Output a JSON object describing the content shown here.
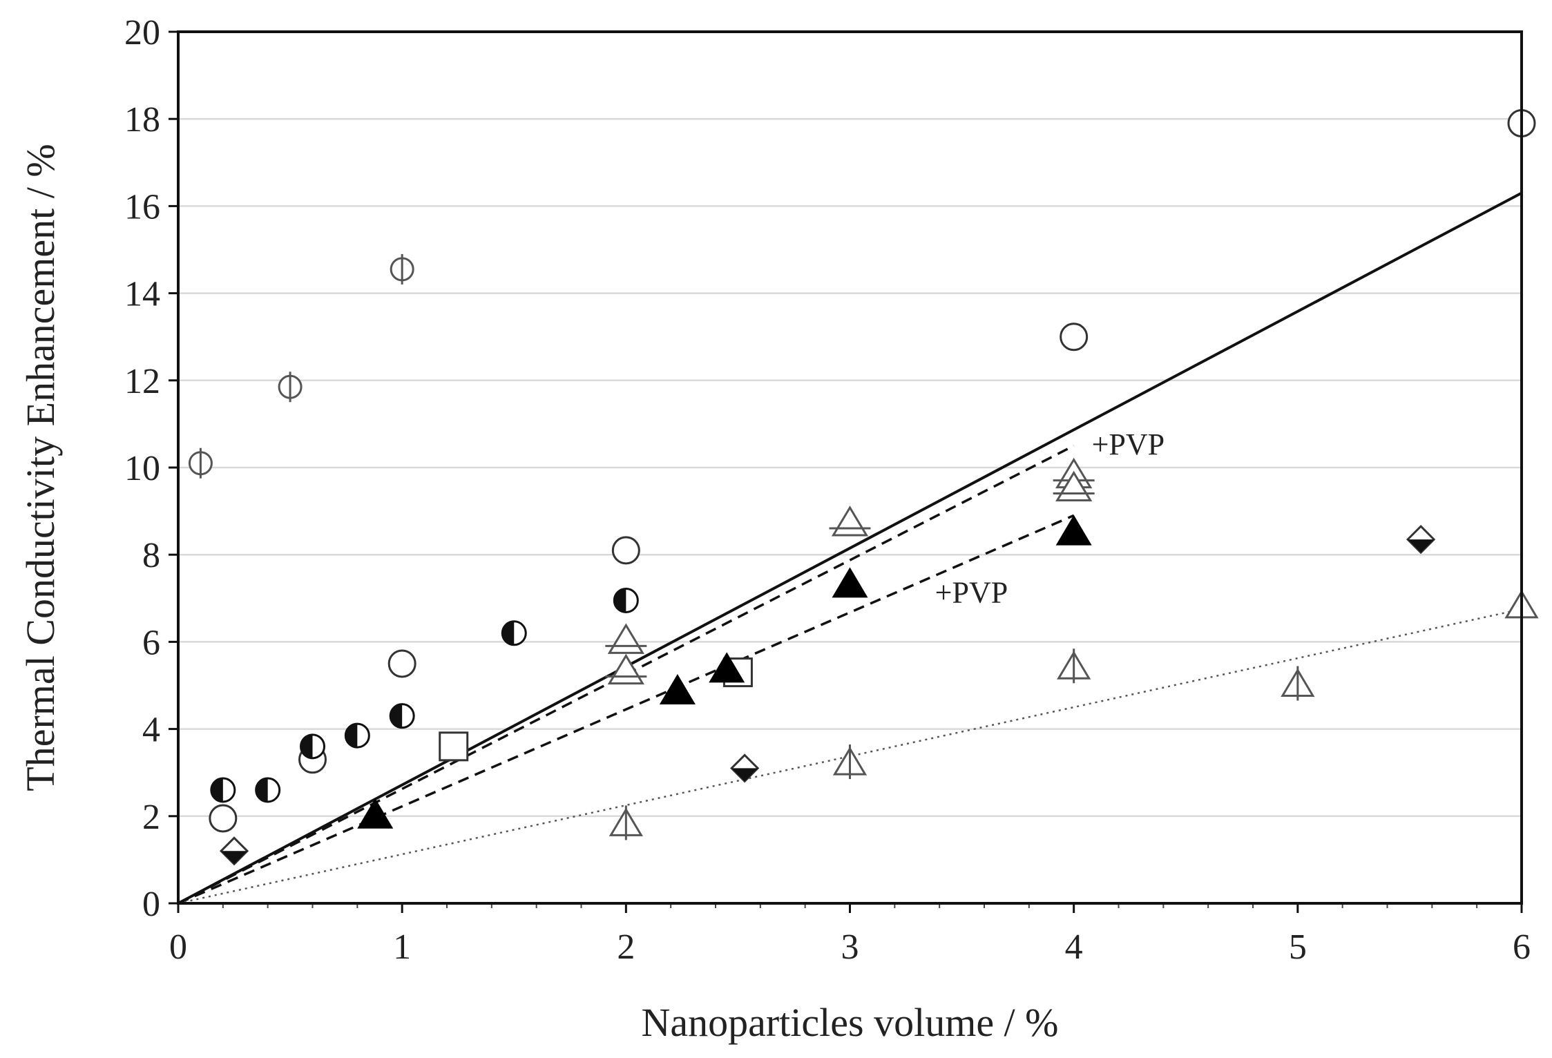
{
  "chart_data": {
    "type": "scatter",
    "title": "",
    "xlabel": "Nanoparticles volume / %",
    "ylabel": "Thermal Conductivity Enhancement / %",
    "xlim": [
      0,
      6
    ],
    "ylim": [
      0,
      20
    ],
    "xticks": [
      0,
      1,
      2,
      3,
      4,
      5,
      6
    ],
    "yticks": [
      0,
      2,
      4,
      6,
      8,
      10,
      12,
      14,
      16,
      18,
      20
    ],
    "grid": "horizontal",
    "legend": "none",
    "series": [
      {
        "name": "open-circle",
        "marker": "circle-open",
        "points": [
          [
            0.2,
            1.95
          ],
          [
            0.6,
            3.3
          ],
          [
            1.0,
            5.5
          ],
          [
            2.0,
            8.1
          ],
          [
            4.0,
            13.0
          ],
          [
            6.0,
            17.9
          ]
        ]
      },
      {
        "name": "half-filled-circle",
        "marker": "circle-half",
        "points": [
          [
            0.2,
            2.6
          ],
          [
            0.4,
            2.6
          ],
          [
            0.6,
            3.6
          ],
          [
            0.8,
            3.85
          ],
          [
            1.0,
            4.3
          ],
          [
            1.5,
            6.2
          ],
          [
            2.0,
            6.95
          ]
        ]
      },
      {
        "name": "circle-with-bar",
        "marker": "circle-bar",
        "points": [
          [
            0.1,
            10.1
          ],
          [
            0.5,
            11.85
          ],
          [
            1.0,
            14.55
          ]
        ]
      },
      {
        "name": "open-square",
        "marker": "square-open",
        "points": [
          [
            1.23,
            3.6
          ],
          [
            2.5,
            5.3
          ]
        ]
      },
      {
        "name": "filled-triangle",
        "marker": "triangle-filled",
        "points": [
          [
            0.88,
            2.0
          ],
          [
            2.23,
            4.85
          ],
          [
            2.45,
            5.35
          ],
          [
            3.0,
            7.3
          ],
          [
            4.0,
            8.5
          ]
        ]
      },
      {
        "name": "triangle-with-bar",
        "marker": "triangle-bar",
        "points": [
          [
            2.0,
            6.0
          ],
          [
            2.0,
            5.3
          ],
          [
            3.0,
            8.7
          ],
          [
            4.0,
            9.8
          ],
          [
            4.0,
            9.5
          ]
        ]
      },
      {
        "name": "triangle-with-vertical",
        "marker": "triangle-vbar",
        "points": [
          [
            2.0,
            1.8
          ],
          [
            3.0,
            3.2
          ],
          [
            4.0,
            5.4
          ],
          [
            5.0,
            5.0
          ],
          [
            6.0,
            6.8
          ]
        ]
      },
      {
        "name": "half-filled-diamond",
        "marker": "diamond-half",
        "points": [
          [
            0.25,
            1.2
          ],
          [
            2.53,
            3.1
          ],
          [
            5.55,
            8.35
          ]
        ]
      }
    ],
    "lines": [
      {
        "name": "fit-solid",
        "style": "solid",
        "points": [
          [
            0,
            0
          ],
          [
            6,
            16.3
          ]
        ]
      },
      {
        "name": "fit-dashed-upper",
        "style": "dashed",
        "points": [
          [
            0,
            0
          ],
          [
            4,
            10.5
          ]
        ]
      },
      {
        "name": "fit-dashed-lower",
        "style": "dashed",
        "points": [
          [
            0,
            0
          ],
          [
            4,
            8.9
          ]
        ]
      },
      {
        "name": "fit-dotted",
        "style": "dotted",
        "points": [
          [
            0,
            0
          ],
          [
            6,
            6.75
          ]
        ]
      }
    ],
    "annotations": [
      {
        "text": "+PVP",
        "x": 4.08,
        "y": 10.3
      },
      {
        "text": "+PVP",
        "x": 3.38,
        "y": 6.9
      }
    ]
  }
}
